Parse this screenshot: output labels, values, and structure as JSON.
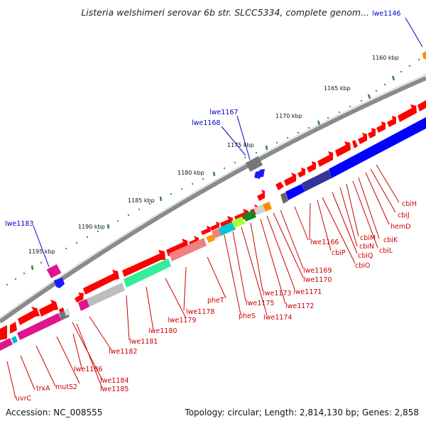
{
  "title": "Listeria welshimeri serovar 6b str. SLCC5334, complete genom...",
  "footer": {
    "accession": "Accession: NC_008555",
    "stats": "Topology: circular; Length: 2,814,130 bp; Genes: 2,858"
  },
  "colors": {
    "backbone": "#8c8c8c",
    "forward": "#ff0000",
    "ruler": "#2e8b2e",
    "red_label": "#cc0000",
    "blue_label": "#0000cc"
  },
  "scale_labels": [
    "1160 kbp",
    "1165 kbp",
    "1170 kbp",
    "1175 kbp",
    "1180 kbp",
    "1185 kbp",
    "1190 kbp",
    "1195 kbp"
  ],
  "outer_labels": [
    "lwe1146",
    "lwe1167",
    "lwe1168",
    "lwe1183"
  ],
  "inner_labels": [
    "cbiH",
    "cbiJ",
    "hemD",
    "cbiK",
    "cbiL",
    "cbiM",
    "cbiN",
    "cbiQ",
    "cbiO",
    "cbiP",
    "lwe1166",
    "lwe1169",
    "lwe1170",
    "lwe1171",
    "lwe1172",
    "lwe1173",
    "lwe1174",
    "lwe1175",
    "pheS",
    "pheT",
    "lwe1178",
    "lwe1179",
    "lwe1180",
    "lwe1181",
    "lwe1182",
    "lwe1186",
    "lwe1184",
    "lwe1185",
    "mutS2",
    "trxA",
    "uvrC"
  ]
}
